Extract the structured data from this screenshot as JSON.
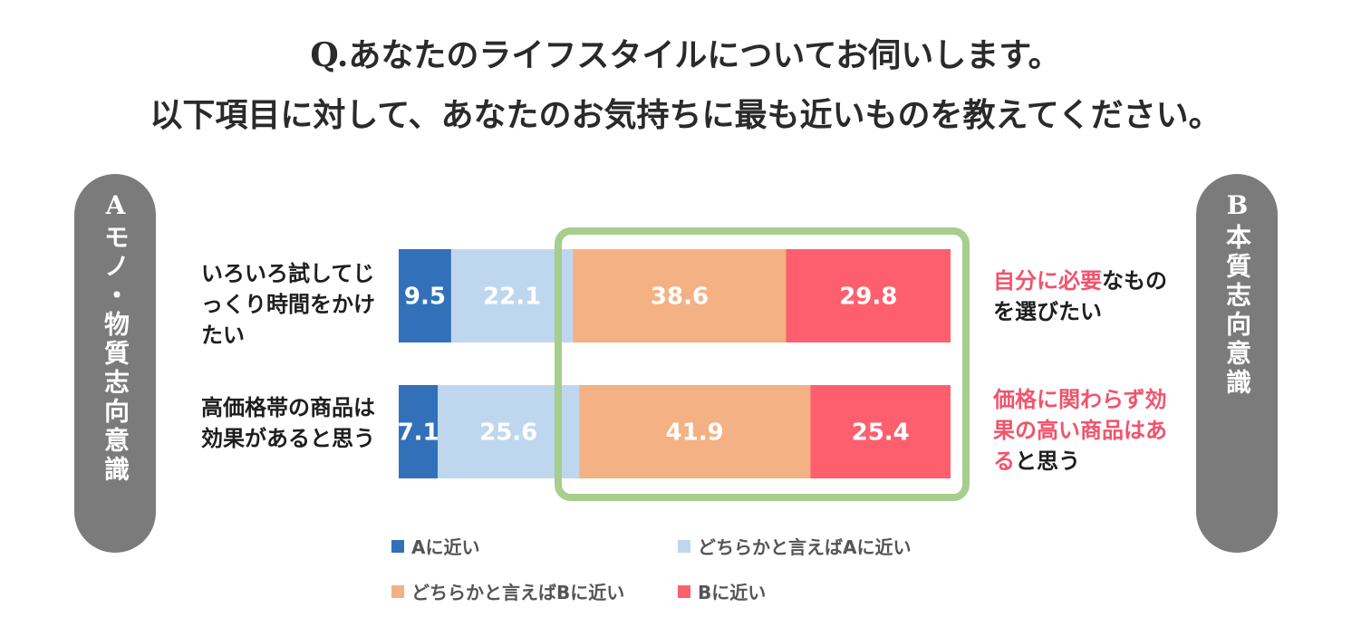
{
  "title": {
    "line1": "Q.あなたのライフスタイルについてお伺いします。",
    "line2": "以下項目に対して、あなたのお気持ちに最も近いものを教えてください。"
  },
  "sides": {
    "a": "Aモノ・物質志向意識",
    "b": "B本質志向意識"
  },
  "rows": [
    {
      "left": "いろいろ試してじっくり時間をかけたい",
      "right_highlight": "自分に必要",
      "right_rest": "なものを選びたい"
    },
    {
      "left": "高価格帯の商品は効果があると思う",
      "right_highlight": "価格に関わらず効果の高い商品はある",
      "right_rest": "と思う"
    }
  ],
  "colors": {
    "a_close": "#3271b9",
    "a_somewhat": "#bfd7ee",
    "b_somewhat": "#f4b184",
    "b_close": "#fe5f6e",
    "highlight_box": "#a6ce8c",
    "pill": "#7b7b7b",
    "pink_text": "#f0546c"
  },
  "chart_data": {
    "type": "bar",
    "orientation": "horizontal",
    "stacked": true,
    "categories": [
      "いろいろ試してじっくり時間をかけたい",
      "高価格帯の商品は効果があると思う"
    ],
    "series": [
      {
        "name": "Aに近い",
        "values": [
          9.5,
          7.1
        ]
      },
      {
        "name": "どちらかと言えばAに近い",
        "values": [
          22.1,
          25.6
        ]
      },
      {
        "name": "どちらかと言えばBに近い",
        "values": [
          38.6,
          41.9
        ]
      },
      {
        "name": "Bに近い",
        "values": [
          29.8,
          25.4
        ]
      }
    ],
    "legend_position": "bottom",
    "grid": false
  }
}
